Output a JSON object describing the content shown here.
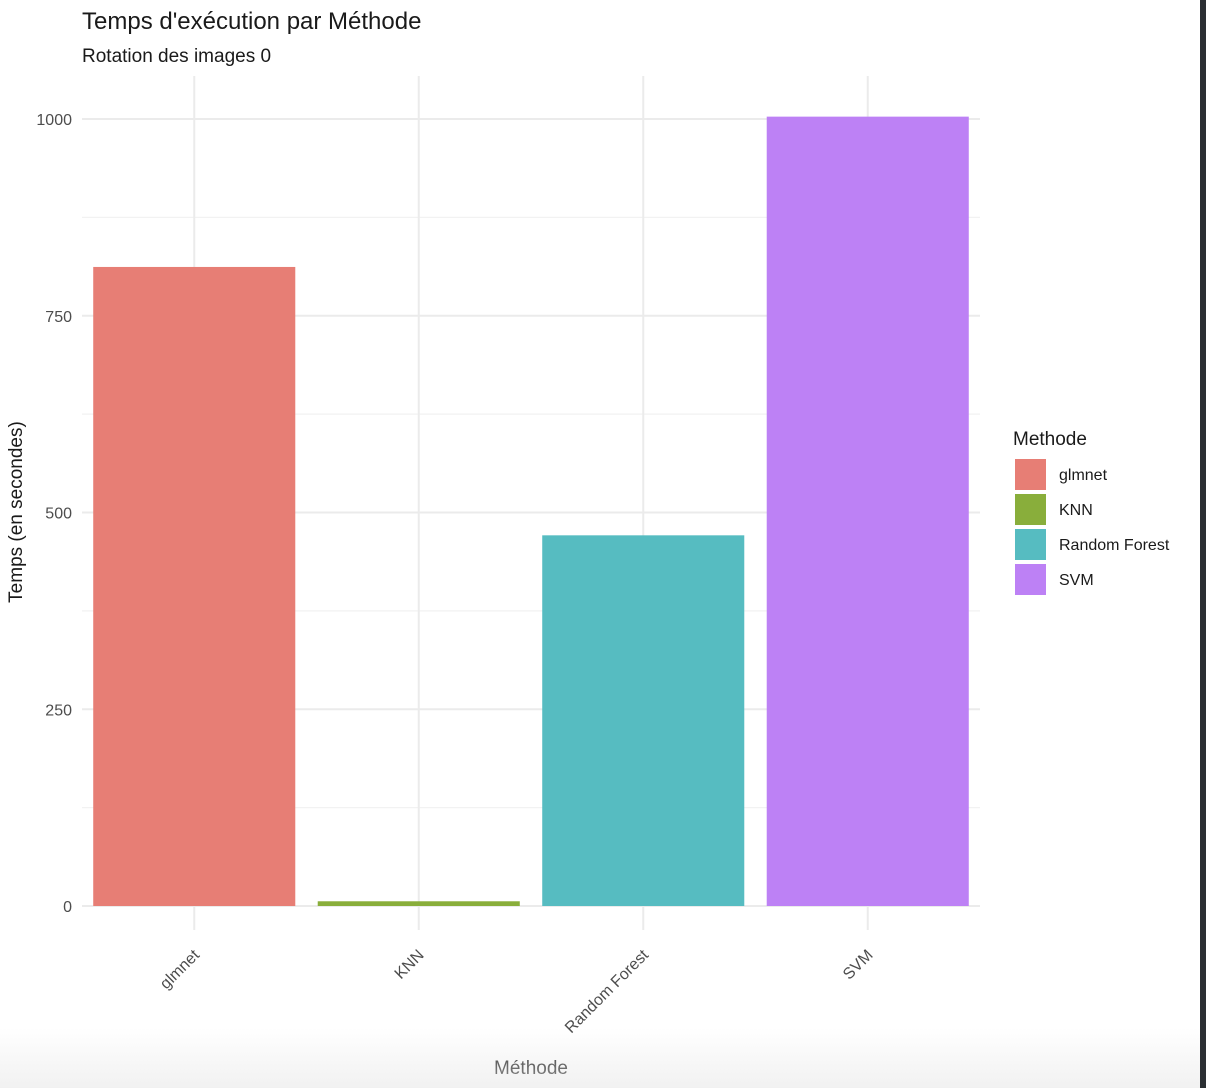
{
  "chart_data": {
    "type": "bar",
    "title": "Temps d'exécution par Méthode",
    "subtitle": "Rotation des images 0",
    "xlabel": "Méthode",
    "ylabel": "Temps (en secondes)",
    "categories": [
      "glmnet",
      "KNN",
      "Random Forest",
      "SVM"
    ],
    "values": [
      812,
      6,
      471,
      1003
    ],
    "colors": [
      "#E77E75",
      "#89AE3B",
      "#56BCC1",
      "#BD81F5"
    ],
    "ylim": [
      0,
      1050
    ],
    "yticks": [
      0,
      250,
      500,
      750,
      1000
    ],
    "yticks_minor": [
      125,
      375,
      625,
      875
    ],
    "grid": true,
    "x_tick_rotation": -45,
    "legend": {
      "title": "Methode",
      "position": "right",
      "items": [
        "glmnet",
        "KNN",
        "Random Forest",
        "SVM"
      ]
    }
  }
}
